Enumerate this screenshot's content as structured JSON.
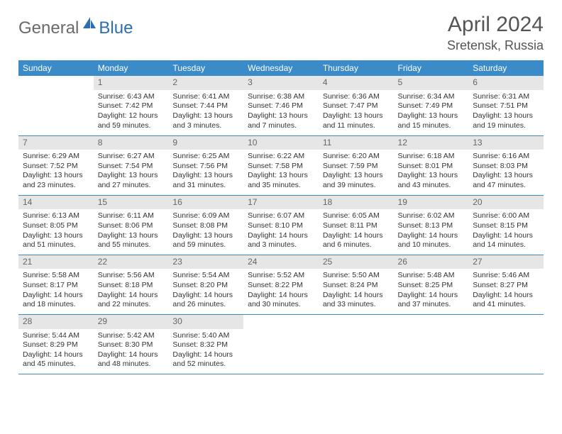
{
  "brand": {
    "name_part1": "General",
    "name_part2": "Blue",
    "accent_color": "#2c6fb0",
    "text_color": "#6a6a6a"
  },
  "title": "April 2024",
  "location": "Sretensk, Russia",
  "header_bg": "#3b8bc9",
  "daynum_bg": "#e6e6e6",
  "weekdays": [
    "Sunday",
    "Monday",
    "Tuesday",
    "Wednesday",
    "Thursday",
    "Friday",
    "Saturday"
  ],
  "weeks": [
    [
      null,
      {
        "num": "1",
        "sunrise": "Sunrise: 6:43 AM",
        "sunset": "Sunset: 7:42 PM",
        "day1": "Daylight: 12 hours",
        "day2": "and 59 minutes."
      },
      {
        "num": "2",
        "sunrise": "Sunrise: 6:41 AM",
        "sunset": "Sunset: 7:44 PM",
        "day1": "Daylight: 13 hours",
        "day2": "and 3 minutes."
      },
      {
        "num": "3",
        "sunrise": "Sunrise: 6:38 AM",
        "sunset": "Sunset: 7:46 PM",
        "day1": "Daylight: 13 hours",
        "day2": "and 7 minutes."
      },
      {
        "num": "4",
        "sunrise": "Sunrise: 6:36 AM",
        "sunset": "Sunset: 7:47 PM",
        "day1": "Daylight: 13 hours",
        "day2": "and 11 minutes."
      },
      {
        "num": "5",
        "sunrise": "Sunrise: 6:34 AM",
        "sunset": "Sunset: 7:49 PM",
        "day1": "Daylight: 13 hours",
        "day2": "and 15 minutes."
      },
      {
        "num": "6",
        "sunrise": "Sunrise: 6:31 AM",
        "sunset": "Sunset: 7:51 PM",
        "day1": "Daylight: 13 hours",
        "day2": "and 19 minutes."
      }
    ],
    [
      {
        "num": "7",
        "sunrise": "Sunrise: 6:29 AM",
        "sunset": "Sunset: 7:52 PM",
        "day1": "Daylight: 13 hours",
        "day2": "and 23 minutes."
      },
      {
        "num": "8",
        "sunrise": "Sunrise: 6:27 AM",
        "sunset": "Sunset: 7:54 PM",
        "day1": "Daylight: 13 hours",
        "day2": "and 27 minutes."
      },
      {
        "num": "9",
        "sunrise": "Sunrise: 6:25 AM",
        "sunset": "Sunset: 7:56 PM",
        "day1": "Daylight: 13 hours",
        "day2": "and 31 minutes."
      },
      {
        "num": "10",
        "sunrise": "Sunrise: 6:22 AM",
        "sunset": "Sunset: 7:58 PM",
        "day1": "Daylight: 13 hours",
        "day2": "and 35 minutes."
      },
      {
        "num": "11",
        "sunrise": "Sunrise: 6:20 AM",
        "sunset": "Sunset: 7:59 PM",
        "day1": "Daylight: 13 hours",
        "day2": "and 39 minutes."
      },
      {
        "num": "12",
        "sunrise": "Sunrise: 6:18 AM",
        "sunset": "Sunset: 8:01 PM",
        "day1": "Daylight: 13 hours",
        "day2": "and 43 minutes."
      },
      {
        "num": "13",
        "sunrise": "Sunrise: 6:16 AM",
        "sunset": "Sunset: 8:03 PM",
        "day1": "Daylight: 13 hours",
        "day2": "and 47 minutes."
      }
    ],
    [
      {
        "num": "14",
        "sunrise": "Sunrise: 6:13 AM",
        "sunset": "Sunset: 8:05 PM",
        "day1": "Daylight: 13 hours",
        "day2": "and 51 minutes."
      },
      {
        "num": "15",
        "sunrise": "Sunrise: 6:11 AM",
        "sunset": "Sunset: 8:06 PM",
        "day1": "Daylight: 13 hours",
        "day2": "and 55 minutes."
      },
      {
        "num": "16",
        "sunrise": "Sunrise: 6:09 AM",
        "sunset": "Sunset: 8:08 PM",
        "day1": "Daylight: 13 hours",
        "day2": "and 59 minutes."
      },
      {
        "num": "17",
        "sunrise": "Sunrise: 6:07 AM",
        "sunset": "Sunset: 8:10 PM",
        "day1": "Daylight: 14 hours",
        "day2": "and 3 minutes."
      },
      {
        "num": "18",
        "sunrise": "Sunrise: 6:05 AM",
        "sunset": "Sunset: 8:11 PM",
        "day1": "Daylight: 14 hours",
        "day2": "and 6 minutes."
      },
      {
        "num": "19",
        "sunrise": "Sunrise: 6:02 AM",
        "sunset": "Sunset: 8:13 PM",
        "day1": "Daylight: 14 hours",
        "day2": "and 10 minutes."
      },
      {
        "num": "20",
        "sunrise": "Sunrise: 6:00 AM",
        "sunset": "Sunset: 8:15 PM",
        "day1": "Daylight: 14 hours",
        "day2": "and 14 minutes."
      }
    ],
    [
      {
        "num": "21",
        "sunrise": "Sunrise: 5:58 AM",
        "sunset": "Sunset: 8:17 PM",
        "day1": "Daylight: 14 hours",
        "day2": "and 18 minutes."
      },
      {
        "num": "22",
        "sunrise": "Sunrise: 5:56 AM",
        "sunset": "Sunset: 8:18 PM",
        "day1": "Daylight: 14 hours",
        "day2": "and 22 minutes."
      },
      {
        "num": "23",
        "sunrise": "Sunrise: 5:54 AM",
        "sunset": "Sunset: 8:20 PM",
        "day1": "Daylight: 14 hours",
        "day2": "and 26 minutes."
      },
      {
        "num": "24",
        "sunrise": "Sunrise: 5:52 AM",
        "sunset": "Sunset: 8:22 PM",
        "day1": "Daylight: 14 hours",
        "day2": "and 30 minutes."
      },
      {
        "num": "25",
        "sunrise": "Sunrise: 5:50 AM",
        "sunset": "Sunset: 8:24 PM",
        "day1": "Daylight: 14 hours",
        "day2": "and 33 minutes."
      },
      {
        "num": "26",
        "sunrise": "Sunrise: 5:48 AM",
        "sunset": "Sunset: 8:25 PM",
        "day1": "Daylight: 14 hours",
        "day2": "and 37 minutes."
      },
      {
        "num": "27",
        "sunrise": "Sunrise: 5:46 AM",
        "sunset": "Sunset: 8:27 PM",
        "day1": "Daylight: 14 hours",
        "day2": "and 41 minutes."
      }
    ],
    [
      {
        "num": "28",
        "sunrise": "Sunrise: 5:44 AM",
        "sunset": "Sunset: 8:29 PM",
        "day1": "Daylight: 14 hours",
        "day2": "and 45 minutes."
      },
      {
        "num": "29",
        "sunrise": "Sunrise: 5:42 AM",
        "sunset": "Sunset: 8:30 PM",
        "day1": "Daylight: 14 hours",
        "day2": "and 48 minutes."
      },
      {
        "num": "30",
        "sunrise": "Sunrise: 5:40 AM",
        "sunset": "Sunset: 8:32 PM",
        "day1": "Daylight: 14 hours",
        "day2": "and 52 minutes."
      },
      null,
      null,
      null,
      null
    ]
  ]
}
